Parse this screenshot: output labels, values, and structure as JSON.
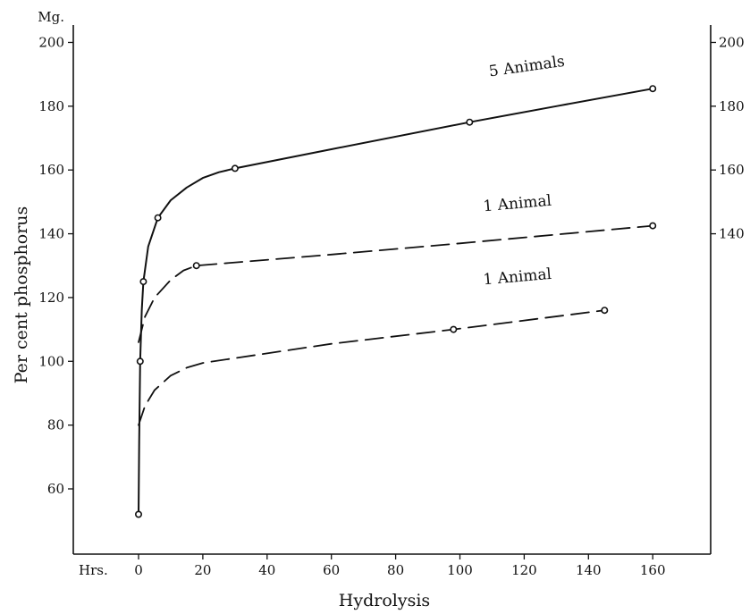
{
  "chart_data": {
    "type": "line",
    "title": "",
    "xlabel": "Hydrolysis",
    "ylabel": "Per cent phosphorus",
    "x_unit_label": "Hrs.",
    "y_unit_label": "Mg.",
    "xlim": [
      -12,
      178
    ],
    "ylim": [
      40,
      205
    ],
    "x_ticks": [
      0,
      20,
      40,
      60,
      80,
      100,
      120,
      140,
      160
    ],
    "y_ticks": [
      60,
      80,
      100,
      120,
      140,
      160,
      180,
      200
    ],
    "right_y_ticks": [
      140,
      160,
      180,
      200
    ],
    "grid": false,
    "series": [
      {
        "name": "5 Animals",
        "style": "solid",
        "points": [
          [
            0,
            52
          ],
          [
            0.5,
            100
          ],
          [
            1.5,
            125
          ],
          [
            6,
            145
          ],
          [
            30,
            160.5
          ],
          [
            103,
            175
          ],
          [
            160,
            185.5
          ]
        ],
        "curve": [
          [
            0,
            52
          ],
          [
            0.2,
            75
          ],
          [
            0.5,
            100
          ],
          [
            1,
            116
          ],
          [
            1.5,
            125
          ],
          [
            3,
            136
          ],
          [
            6,
            145
          ],
          [
            10,
            150.5
          ],
          [
            15,
            154.5
          ],
          [
            20,
            157.5
          ],
          [
            25,
            159.3
          ],
          [
            30,
            160.5
          ],
          [
            60,
            166.5
          ],
          [
            103,
            175
          ],
          [
            130,
            180
          ],
          [
            160,
            185.5
          ]
        ]
      },
      {
        "name": "1 Animal",
        "style": "dashed",
        "points": [
          [
            18,
            130
          ],
          [
            160,
            142.5
          ]
        ],
        "curve": [
          [
            0,
            106
          ],
          [
            2,
            114
          ],
          [
            5,
            120
          ],
          [
            10,
            125.5
          ],
          [
            14,
            128.5
          ],
          [
            18,
            130
          ],
          [
            60,
            133.5
          ],
          [
            100,
            137
          ],
          [
            160,
            142.5
          ]
        ]
      },
      {
        "name": "1 Animal",
        "style": "dashed",
        "points": [
          [
            98,
            110
          ],
          [
            145,
            116
          ]
        ],
        "curve": [
          [
            0,
            80
          ],
          [
            2,
            86
          ],
          [
            5,
            91
          ],
          [
            10,
            95.5
          ],
          [
            15,
            98
          ],
          [
            20,
            99.5
          ],
          [
            30,
            101
          ],
          [
            60,
            105.5
          ],
          [
            98,
            110
          ],
          [
            145,
            116
          ]
        ]
      }
    ]
  }
}
